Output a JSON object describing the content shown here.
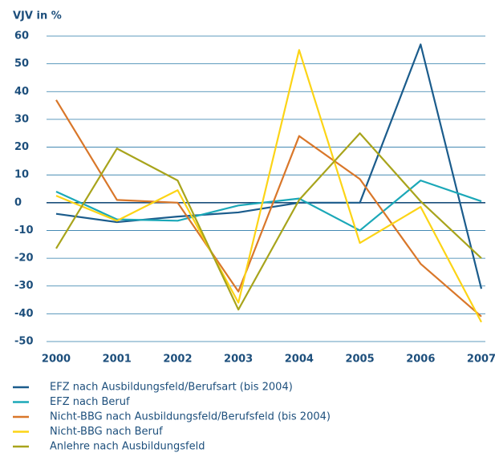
{
  "chart_data": {
    "type": "line",
    "y_label": "VJV in %",
    "categories": [
      "2000",
      "2001",
      "2002",
      "2003",
      "2004",
      "2005",
      "2006",
      "2007"
    ],
    "series": [
      {
        "name": "EFZ nach Ausbildungsfeld/Berufsart (bis 2004)",
        "color": "#1b5c8c",
        "values": [
          -4,
          -7,
          -5,
          -3.5,
          0,
          0,
          57,
          -31
        ]
      },
      {
        "name": "EFZ nach Beruf",
        "color": "#1ba8b8",
        "values": [
          4,
          -6,
          -6.5,
          -1,
          1.5,
          -10,
          8,
          0.5
        ]
      },
      {
        "name": "Nicht-BBG nach Ausbildungsfeld/Berufsfeld (bis 2004)",
        "color": "#d9772a",
        "values": [
          37,
          1,
          0,
          -32,
          24,
          8.5,
          -22,
          -41
        ]
      },
      {
        "name": "Nicht-BBG nach Beruf",
        "color": "#fcd416",
        "values": [
          2.5,
          -6.5,
          4.5,
          -36,
          55,
          -14.5,
          -1.5,
          -43
        ]
      },
      {
        "name": "Anlehre nach Ausbildungsfeld",
        "color": "#a8a41c",
        "values": [
          -16.5,
          19.5,
          8,
          -38.5,
          1,
          25,
          0.5,
          -20
        ]
      }
    ],
    "ylim": [
      -50,
      60
    ],
    "yticks": [
      60,
      50,
      40,
      30,
      20,
      10,
      0,
      -10,
      -20,
      -30,
      -40,
      -50
    ],
    "grid": true
  }
}
